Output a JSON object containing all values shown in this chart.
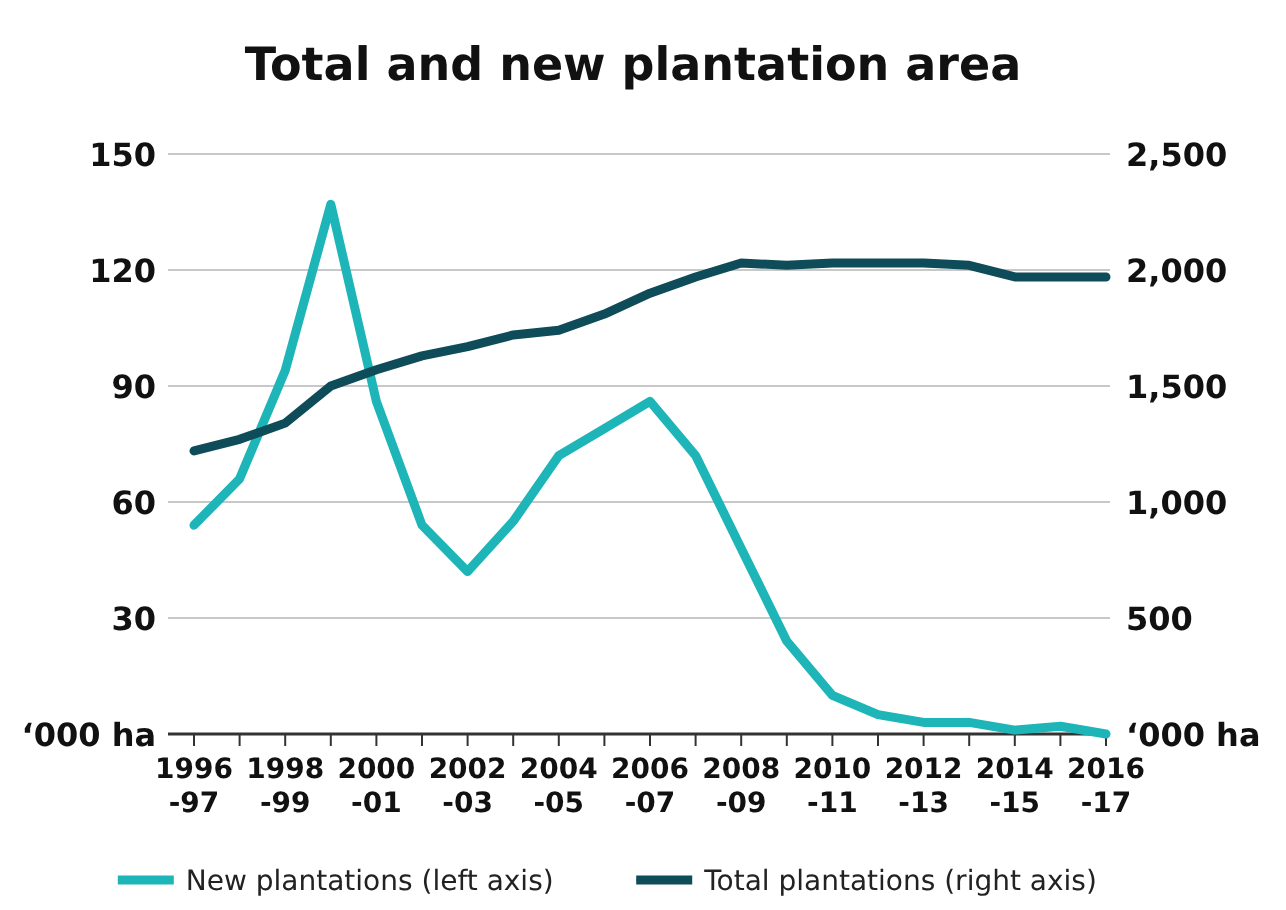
{
  "chart_data": {
    "type": "line",
    "title": "Total and new plantation area",
    "categories": [
      "1996-97",
      null,
      "1998-99",
      null,
      "2000-01",
      null,
      "2002-03",
      null,
      "2004-05",
      null,
      "2006-07",
      null,
      "2008-09",
      null,
      "2010-11",
      null,
      "2012-13",
      null,
      "2014-15",
      null,
      "2016-17"
    ],
    "series": [
      {
        "name": "New plantations (left axis)",
        "color": "#1db5b8",
        "values": [
          54,
          66,
          94,
          137,
          86,
          54,
          42,
          55,
          72,
          79,
          86,
          72,
          48,
          24,
          10,
          5,
          3,
          3,
          1,
          2,
          0
        ]
      },
      {
        "name": "Total plantations (right axis)",
        "color": "#0d4c58",
        "axis": "y2",
        "values": [
          1220,
          1270,
          1340,
          1500,
          1570,
          1630,
          1670,
          1720,
          1740,
          1810,
          1900,
          1970,
          2030,
          2020,
          2030,
          2030,
          2030,
          2020,
          1970,
          1970,
          1970
        ]
      }
    ],
    "ylim": [
      0,
      150
    ],
    "yticks": [
      {
        "value": 0,
        "label": "‘000 ha"
      },
      30,
      60,
      90,
      120,
      150
    ],
    "y2lim": [
      0,
      2500
    ],
    "y2ticks": [
      {
        "value": 0,
        "label": "‘000 ha"
      },
      {
        "value": 500,
        "label": "500"
      },
      {
        "value": 1000,
        "label": "1,000"
      },
      {
        "value": 1500,
        "label": "1,500"
      },
      {
        "value": 2000,
        "label": "2,000"
      },
      {
        "value": 2500,
        "label": "2,500"
      }
    ],
    "grid": "y",
    "legend": "bottom",
    "marker": "none",
    "line_style": "solid"
  }
}
